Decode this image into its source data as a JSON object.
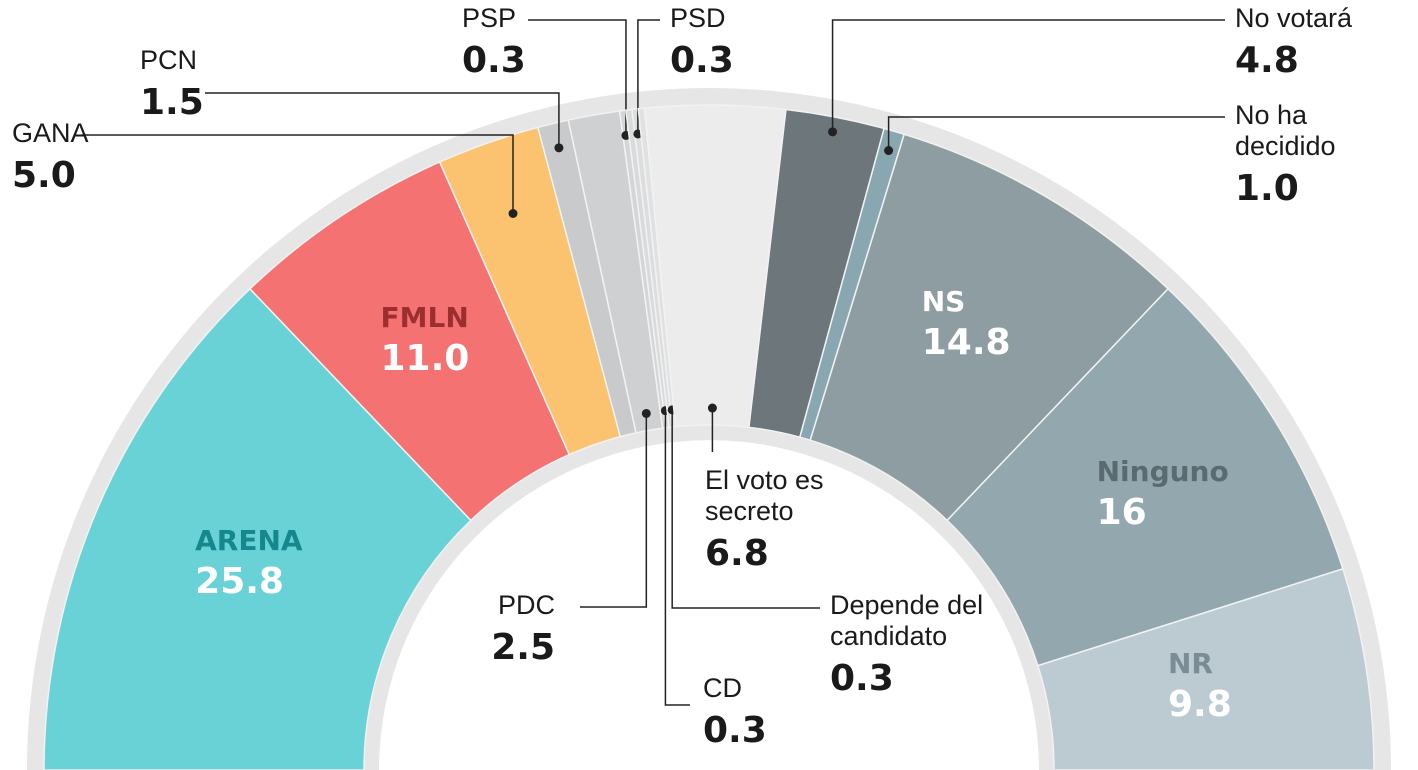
{
  "chart_data": {
    "type": "pie",
    "categories": [
      "ARENA",
      "FMLN",
      "GANA",
      "PCN",
      "PDC",
      "PSP",
      "CD",
      "PSD",
      "Depende del candidato",
      "El voto es secreto",
      "No votará",
      "No ha decidido",
      "NS",
      "Ninguno",
      "NR"
    ],
    "values": [
      25.8,
      11.0,
      5.0,
      1.5,
      2.5,
      0.3,
      0.3,
      0.3,
      0.3,
      6.8,
      4.8,
      1.0,
      14.8,
      16,
      9.8
    ],
    "value_labels": [
      "25.8",
      "11.0",
      "5.0",
      "1.5",
      "2.5",
      "0.3",
      "0.3",
      "0.3",
      "0.3",
      "6.8",
      "4.8",
      "1.0",
      "14.8",
      "16",
      "9.8"
    ],
    "colors": [
      "#68d2d6",
      "#f47272",
      "#fbc36f",
      "#c9cacc",
      "#cfd0d2",
      "#d4d5d7",
      "#d9dadc",
      "#dcdddf",
      "#e0e1e3",
      "#ececed",
      "#6c767b",
      "#88a7b1",
      "#8e9da1",
      "#93a7ae",
      "#bccbd1"
    ]
  }
}
